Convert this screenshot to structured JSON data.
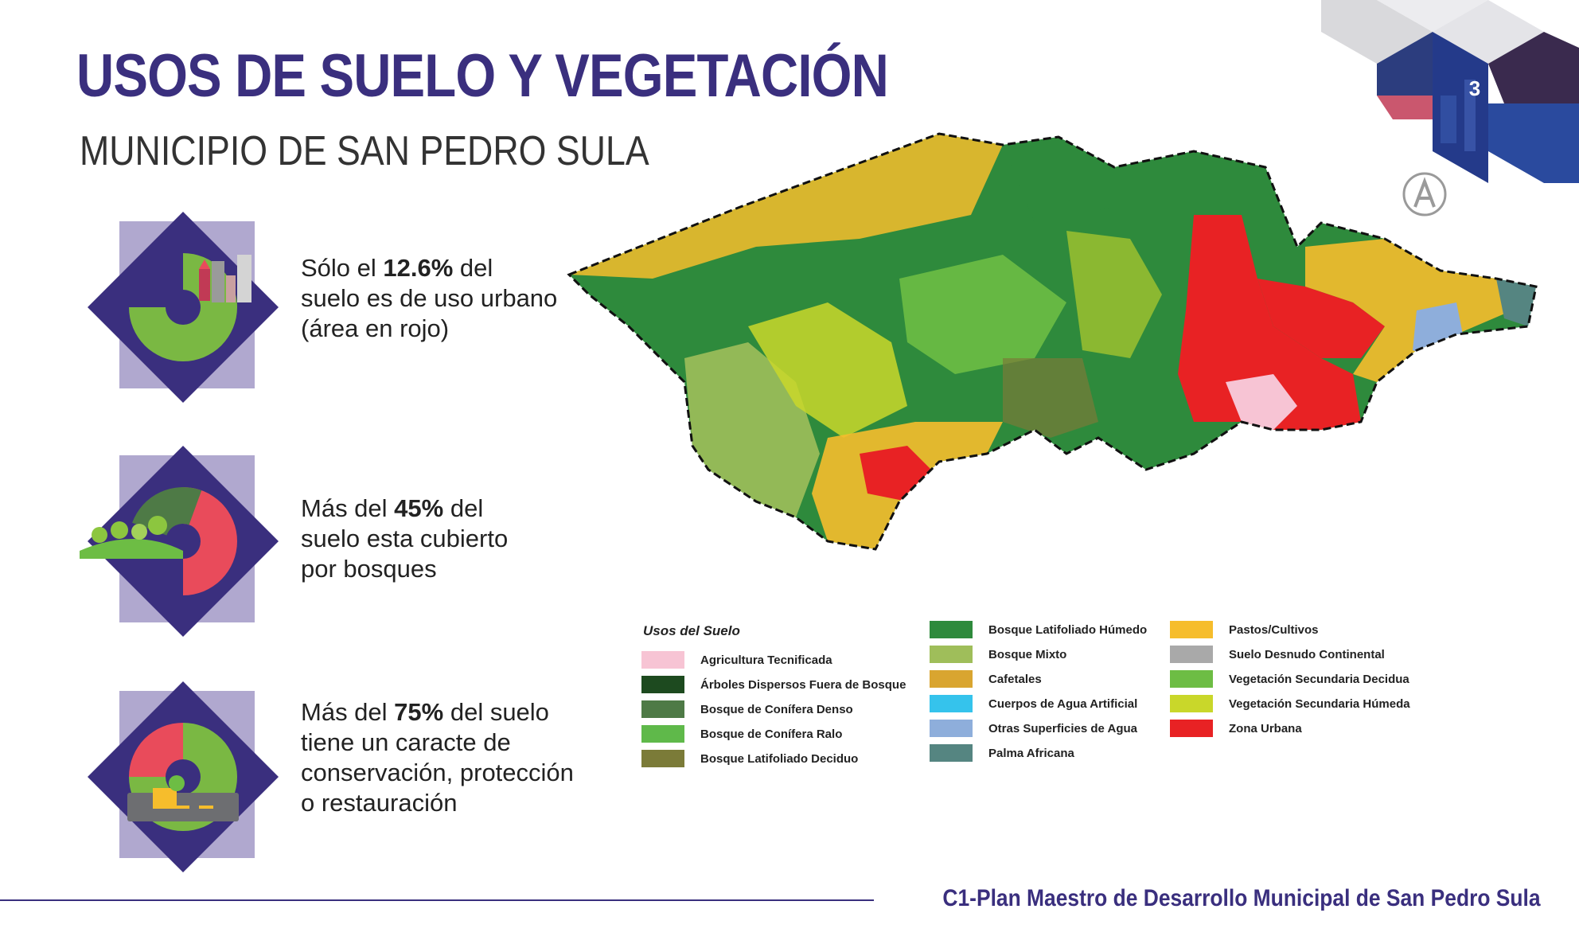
{
  "header": {
    "title": "USOS DE SUELO Y VEGETACIÓN",
    "subtitle": "MUNICIPIO DE SAN PEDRO SULA",
    "page_number": "3"
  },
  "stats": [
    {
      "pre": "Sólo el ",
      "value": "12.6%",
      "post1": " del",
      "line2": "suelo es de uso urbano",
      "line3": "(área en rojo)",
      "line4": "",
      "icon": "city-donut-icon"
    },
    {
      "pre": "Más del ",
      "value": "45%",
      "post1": " del",
      "line2": "suelo esta cubierto",
      "line3": "por bosques",
      "line4": "",
      "icon": "forest-donut-icon"
    },
    {
      "pre": "Más del ",
      "value": "75%",
      "post1": " del suelo",
      "line2": "tiene un caracte de",
      "line3": "conservación, protección",
      "line4": "o restauración",
      "icon": "conservation-donut-icon"
    }
  ],
  "legend": {
    "title": "Usos del Suelo",
    "items": [
      {
        "label": "Agricultura Tecnificada",
        "color": "#f7c4d4"
      },
      {
        "label": "Árboles Dispersos Fuera de Bosque",
        "color": "#1d4a1f"
      },
      {
        "label": "Bosque de Conífera Denso",
        "color": "#4e7a46"
      },
      {
        "label": "Bosque de Conífera Ralo",
        "color": "#5fb94a"
      },
      {
        "label": "Bosque Latifoliado Deciduo",
        "color": "#7b7b38"
      },
      {
        "label": "Bosque Latifoliado Húmedo",
        "color": "#2e8a3c"
      },
      {
        "label": "Bosque Mixto",
        "color": "#9fbe5a"
      },
      {
        "label": "Cafetales",
        "color": "#d9a530"
      },
      {
        "label": "Cuerpos de Agua Artificial",
        "color": "#35c3ec"
      },
      {
        "label": "Otras Superficies de Agua",
        "color": "#8eaedb"
      },
      {
        "label": "Palma Africana",
        "color": "#558581"
      },
      {
        "label": "Pastos/Cultivos",
        "color": "#f6bd2c"
      },
      {
        "label": "Suelo Desnudo Continental",
        "color": "#a9a9a9"
      },
      {
        "label": "Vegetación Secundaria Decidua",
        "color": "#6dbd44"
      },
      {
        "label": "Vegetación Secundaria Húmeda",
        "color": "#c9d72a"
      },
      {
        "label": "Zona Urbana",
        "color": "#e82224"
      }
    ]
  },
  "footer": {
    "text": "C1-Plan Maestro de Desarrollo Municipal de San Pedro Sula"
  },
  "colors": {
    "brand_purple": "#3a2f7e",
    "lavender": "#b0a8cf",
    "donut_green": "#7ab843",
    "donut_red": "#e94b5b",
    "forest_green": "#2e8a3c",
    "urban_red": "#e82224",
    "pasture_yellow": "#f6bd2c"
  }
}
